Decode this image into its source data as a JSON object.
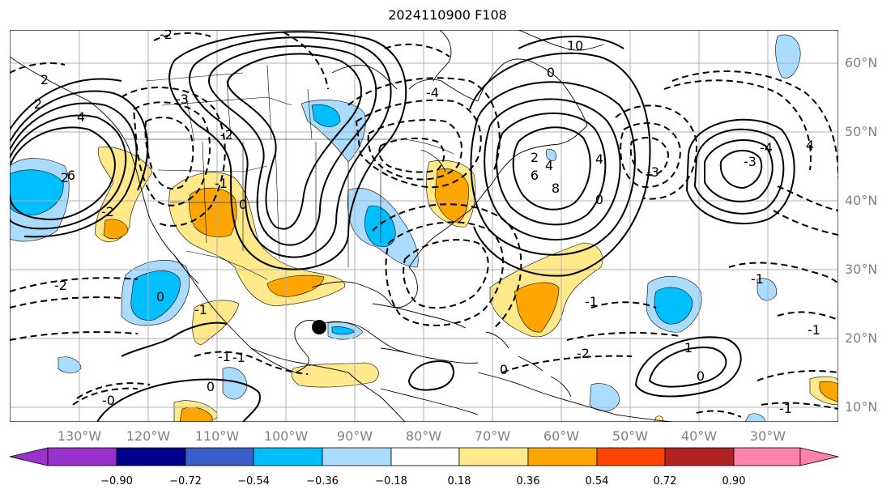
{
  "title": "2024110900 F108",
  "longitude_labels": [
    "130°W",
    "120°W",
    "110°W",
    "100°W",
    "90°W",
    "80°W",
    "70°W",
    "60°W",
    "50°W",
    "40°W",
    "30°W"
  ],
  "latitude_labels": [
    "60°N",
    "50°N",
    "40°N",
    "30°N",
    "20°N",
    "10°N"
  ],
  "contour_labels": [
    "2",
    "-2",
    "0",
    "2",
    "4",
    "6",
    "-3",
    "0",
    "-1",
    "-2",
    "-1",
    "0",
    "-1",
    "-2",
    "-3",
    "-4",
    "-2",
    "4",
    "0",
    "-1",
    "-2",
    "2",
    "4",
    "6",
    "8",
    "10",
    "0",
    "-3",
    "-4",
    "4",
    "-1",
    "-1",
    "-1",
    "1",
    "0",
    "-1",
    "0",
    "-0",
    "2"
  ],
  "colorbar": {
    "tick_labels": [
      "−0.90",
      "−0.72",
      "−0.54",
      "−0.36",
      "−0.18",
      "0.18",
      "0.36",
      "0.54",
      "0.72",
      "0.90"
    ],
    "colors": [
      "#9932cc",
      "#00008b",
      "#3a5fcd",
      "#00bfff",
      "#aadcff",
      "#ffffff",
      "#ffe98a",
      "#ffa500",
      "#ff4500",
      "#b22222",
      "#ff82ab"
    ]
  },
  "storm_marker": "black-dot"
}
